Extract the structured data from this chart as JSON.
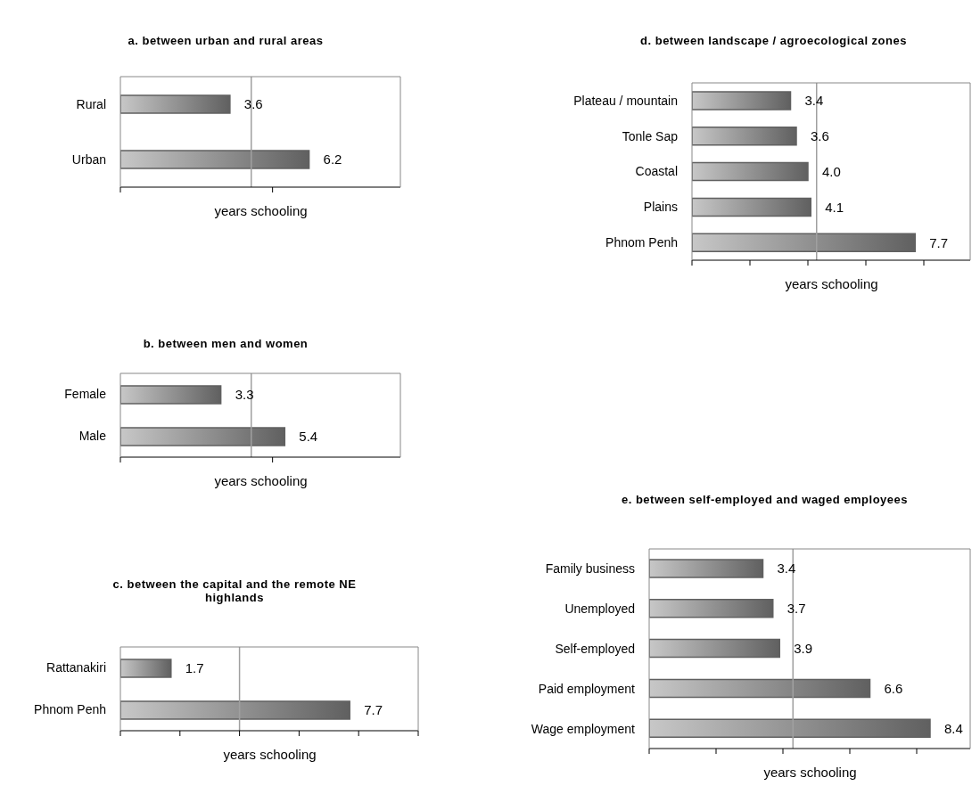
{
  "chart_data": [
    {
      "type": "bar",
      "orientation": "horizontal",
      "title": "a. between urban and rural areas",
      "xlabel": "years schooling",
      "categories": [
        "Rural",
        "Urban"
      ],
      "values": [
        3.6,
        6.2
      ],
      "value_labels": [
        "3.6",
        "6.2"
      ],
      "color": "#606060",
      "xlim": [
        0,
        9.2
      ],
      "xticks": [
        {
          "value": 0,
          "label": null
        },
        {
          "value": 5,
          "label": null
        }
      ],
      "ref_lines": [
        {
          "axis": "x",
          "value": 4.3,
          "color": "#a0a0a0"
        }
      ]
    },
    {
      "type": "bar",
      "orientation": "horizontal",
      "title": "b. between men and women",
      "xlabel": "years schooling",
      "categories": [
        "Female",
        "Male"
      ],
      "values": [
        3.3,
        5.4
      ],
      "value_labels": [
        "3.3",
        "5.4"
      ],
      "color": "#606060",
      "xlim": [
        0,
        9.2
      ],
      "xticks": [
        {
          "value": 0,
          "label": null
        },
        {
          "value": 5,
          "label": null
        }
      ],
      "ref_lines": [
        {
          "axis": "x",
          "value": 4.3,
          "color": "#a0a0a0"
        }
      ]
    },
    {
      "type": "bar",
      "orientation": "horizontal",
      "title": "c. between the capital and the remote NE highlands",
      "xlabel": "years schooling",
      "categories": [
        "Rattanakiri",
        "Phnom Penh"
      ],
      "values": [
        1.7,
        7.7
      ],
      "value_labels": [
        "1.7",
        "7.7"
      ],
      "color": "#606060",
      "xlim": [
        0,
        10
      ],
      "xticks": [
        {
          "value": 0,
          "label": null
        },
        {
          "value": 2,
          "label": null
        },
        {
          "value": 4,
          "label": null
        },
        {
          "value": 6,
          "label": null
        },
        {
          "value": 8,
          "label": null
        },
        {
          "value": 10,
          "label": null
        }
      ],
      "ref_lines": [
        {
          "axis": "x",
          "value": 4.0,
          "color": "#a0a0a0"
        }
      ]
    },
    {
      "type": "bar",
      "orientation": "horizontal",
      "title": "d. between landscape / agroecological zones",
      "xlabel": "years schooling",
      "categories": [
        "Plateau / mountain",
        "Tonle Sap",
        "Coastal",
        "Plains",
        "Phnom Penh"
      ],
      "values": [
        3.4,
        3.6,
        4.0,
        4.1,
        7.7
      ],
      "value_labels": [
        "3.4",
        "3.6",
        "4.0",
        "4.1",
        "7.7"
      ],
      "color": "#606060",
      "xlim": [
        0,
        9.6
      ],
      "xticks": [
        {
          "value": 0,
          "label": null
        },
        {
          "value": 2,
          "label": null
        },
        {
          "value": 4,
          "label": null
        },
        {
          "value": 6,
          "label": null
        },
        {
          "value": 8,
          "label": null
        }
      ],
      "ref_lines": [
        {
          "axis": "x",
          "value": 4.3,
          "color": "#a0a0a0"
        }
      ]
    },
    {
      "type": "bar",
      "orientation": "horizontal",
      "title": "e. between self-employed and waged employees",
      "xlabel": "years schooling",
      "categories": [
        "Family business",
        "Unemployed",
        "Self-employed",
        "Paid employment",
        "Wage employment"
      ],
      "values": [
        3.4,
        3.7,
        3.9,
        6.6,
        8.4
      ],
      "value_labels": [
        "3.4",
        "3.7",
        "3.9",
        "6.6",
        "8.4"
      ],
      "color": "#606060",
      "xlim": [
        0,
        9.6
      ],
      "xticks": [
        {
          "value": 0,
          "label": null
        },
        {
          "value": 2,
          "label": null
        },
        {
          "value": 4,
          "label": null
        },
        {
          "value": 6,
          "label": null
        },
        {
          "value": 8,
          "label": null
        }
      ],
      "ref_lines": [
        {
          "axis": "x",
          "value": 4.3,
          "color": "#a0a0a0"
        }
      ]
    }
  ]
}
